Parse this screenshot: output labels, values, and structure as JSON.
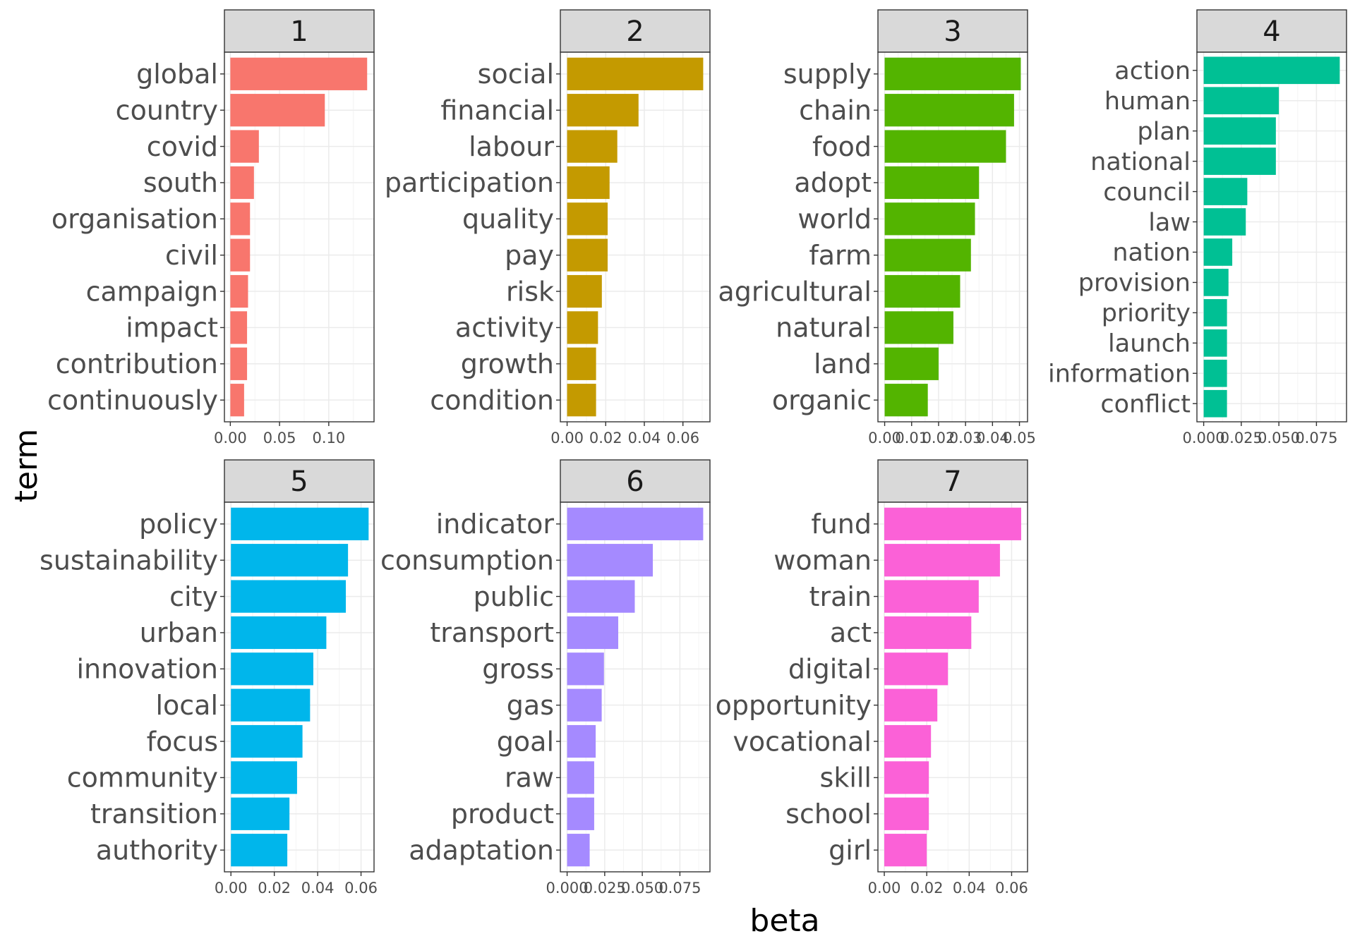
{
  "chart_data": {
    "type": "bar",
    "orientation": "horizontal",
    "xlabel": "beta",
    "ylabel": "term",
    "grid": true,
    "facets": [
      {
        "label": "1",
        "color": "#F8766D",
        "terms": [
          "global",
          "country",
          "covid",
          "south",
          "organisation",
          "civil",
          "campaign",
          "impact",
          "contribution",
          "continuously"
        ],
        "values": [
          0.139,
          0.096,
          0.029,
          0.024,
          0.02,
          0.02,
          0.018,
          0.017,
          0.017,
          0.014
        ],
        "xlim": [
          -0.006,
          0.146
        ],
        "ticks": [
          0,
          0.05,
          0.1
        ],
        "tick_labels": [
          "0.00",
          "0.05",
          "0.10"
        ]
      },
      {
        "label": "2",
        "color": "#C49A00",
        "terms": [
          "social",
          "financial",
          "labour",
          "participation",
          "quality",
          "pay",
          "risk",
          "activity",
          "growth",
          "condition"
        ],
        "values": [
          0.0705,
          0.037,
          0.026,
          0.022,
          0.021,
          0.021,
          0.018,
          0.016,
          0.015,
          0.015
        ],
        "xlim": [
          -0.0035,
          0.074
        ],
        "ticks": [
          0,
          0.02,
          0.04,
          0.06
        ],
        "tick_labels": [
          "0.00",
          "0.02",
          "0.04",
          "0.06"
        ]
      },
      {
        "label": "3",
        "color": "#53B400",
        "terms": [
          "supply",
          "chain",
          "food",
          "adopt",
          "world",
          "farm",
          "agricultural",
          "natural",
          "land",
          "organic"
        ],
        "values": [
          0.0505,
          0.048,
          0.045,
          0.035,
          0.0335,
          0.032,
          0.028,
          0.0255,
          0.02,
          0.016
        ],
        "xlim": [
          -0.0025,
          0.053
        ],
        "ticks": [
          0,
          0.01,
          0.02,
          0.03,
          0.04,
          0.05
        ],
        "tick_labels": [
          "0.00",
          "0.01",
          "0.02",
          "0.03",
          "0.04",
          "0.05"
        ]
      },
      {
        "label": "4",
        "color": "#00C094",
        "terms": [
          "action",
          "human",
          "plan",
          "national",
          "council",
          "law",
          "nation",
          "provision",
          "priority",
          "launch",
          "information",
          "conflict"
        ],
        "values": [
          0.0905,
          0.05,
          0.048,
          0.048,
          0.029,
          0.028,
          0.019,
          0.0165,
          0.0155,
          0.0155,
          0.0155,
          0.0155
        ],
        "xlim": [
          -0.0045,
          0.095
        ],
        "ticks": [
          0,
          0.025,
          0.05,
          0.075
        ],
        "tick_labels": [
          "0.000",
          "0.025",
          "0.050",
          "0.075"
        ]
      },
      {
        "label": "5",
        "color": "#00B6EB",
        "terms": [
          "policy",
          "sustainability",
          "city",
          "urban",
          "innovation",
          "local",
          "focus",
          "community",
          "transition",
          "authority"
        ],
        "values": [
          0.0635,
          0.054,
          0.053,
          0.044,
          0.038,
          0.0365,
          0.033,
          0.0305,
          0.027,
          0.026
        ],
        "xlim": [
          -0.003,
          0.066
        ],
        "ticks": [
          0,
          0.02,
          0.04,
          0.06
        ],
        "tick_labels": [
          "0.00",
          "0.02",
          "0.04",
          "0.06"
        ]
      },
      {
        "label": "6",
        "color": "#A58AFF",
        "terms": [
          "indicator",
          "consumption",
          "public",
          "transport",
          "gross",
          "gas",
          "goal",
          "raw",
          "product",
          "adaptation"
        ],
        "values": [
          0.0905,
          0.057,
          0.045,
          0.034,
          0.0245,
          0.023,
          0.019,
          0.018,
          0.018,
          0.015
        ],
        "xlim": [
          -0.0045,
          0.095
        ],
        "ticks": [
          0,
          0.025,
          0.05,
          0.075
        ],
        "tick_labels": [
          "0.000",
          "0.025",
          "0.050",
          "0.075"
        ]
      },
      {
        "label": "7",
        "color": "#FB61D7",
        "terms": [
          "fund",
          "woman",
          "train",
          "act",
          "digital",
          "opportunity",
          "vocational",
          "skill",
          "school",
          "girl"
        ],
        "values": [
          0.0645,
          0.0545,
          0.0445,
          0.041,
          0.03,
          0.025,
          0.022,
          0.021,
          0.021,
          0.02
        ],
        "xlim": [
          -0.003,
          0.0675
        ],
        "ticks": [
          0,
          0.02,
          0.04,
          0.06
        ],
        "tick_labels": [
          "0.00",
          "0.02",
          "0.04",
          "0.06"
        ]
      }
    ]
  }
}
